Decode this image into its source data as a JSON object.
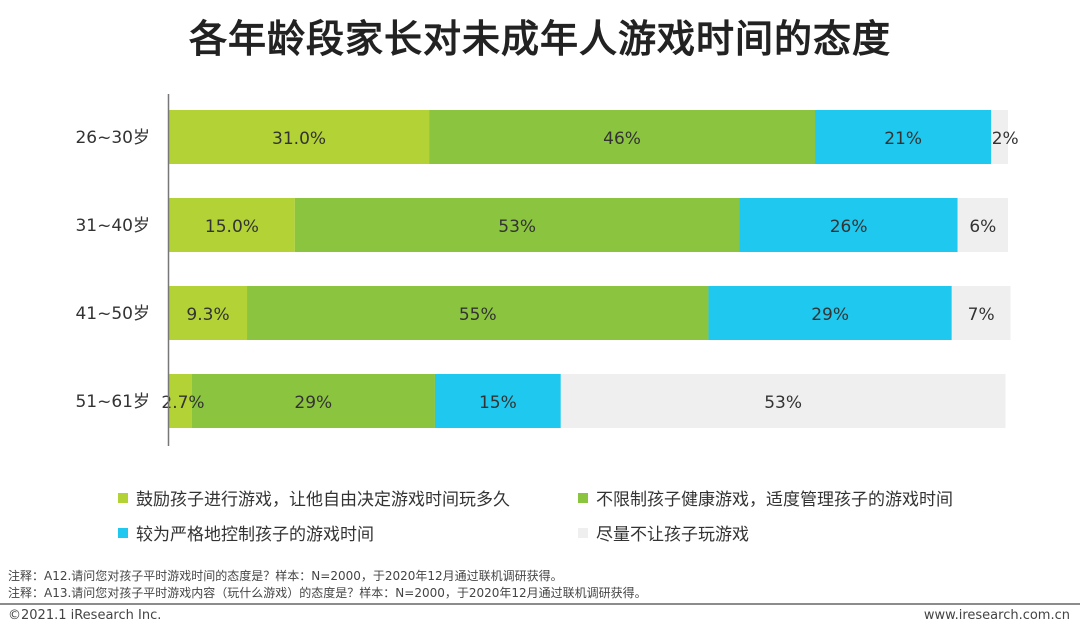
{
  "title": "各年龄段家长对未成年人游戏时间的态度",
  "chart_data": {
    "type": "bar",
    "orientation": "horizontal",
    "stacked": true,
    "categories": [
      "26~30岁",
      "31~40岁",
      "41~50岁",
      "51~61岁"
    ],
    "series": [
      {
        "name": "鼓励孩子进行游戏，让他自由决定游戏时间玩多久",
        "color": "#b3d235",
        "values": [
          31.0,
          15.0,
          9.3,
          2.7
        ],
        "labels": [
          "31.0%",
          "15.0%",
          "9.3%",
          "2.7%"
        ]
      },
      {
        "name": "不限制孩子健康游戏，适度管理孩子的游戏时间",
        "color": "#8bc53f",
        "values": [
          46,
          53,
          55,
          29
        ],
        "labels": [
          "46%",
          "53%",
          "55%",
          "29%"
        ]
      },
      {
        "name": "较为严格地控制孩子的游戏时间",
        "color": "#1ec8ee",
        "values": [
          21,
          26,
          29,
          15
        ],
        "labels": [
          "21%",
          "26%",
          "29%",
          "15%"
        ]
      },
      {
        "name": "尽量不让孩子玩游戏",
        "color": "#efefef",
        "values": [
          2,
          6,
          7,
          53
        ],
        "labels": [
          "2%",
          "6%",
          "7%",
          "53%"
        ]
      }
    ],
    "xlim": [
      0,
      100
    ],
    "grid": false,
    "legend_position": "bottom"
  },
  "notes": [
    "注释：A12.请问您对孩子平时游戏时间的态度是？样本：N=2000，于2020年12月通过联机调研获得。",
    "注释：A13.请问您对孩子平时游戏内容（玩什么游戏）的态度是？样本：N=2000，于2020年12月通过联机调研获得。"
  ],
  "footer": {
    "copyright": "©2021.1 iResearch Inc.",
    "website": "www.iresearch.com.cn"
  }
}
